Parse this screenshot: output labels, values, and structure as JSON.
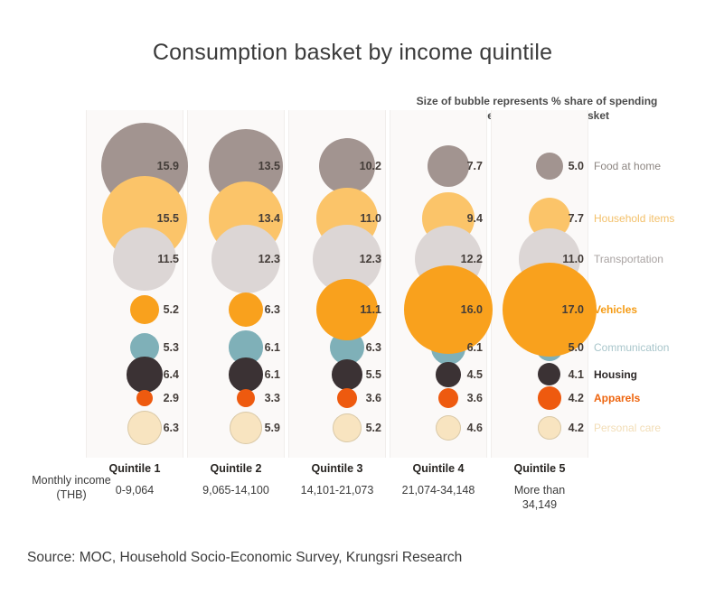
{
  "title": "Consumption basket by income quintile",
  "annotation": {
    "line1": "Size of bubble represents % share of spending",
    "line2": "in their consumption basket"
  },
  "income_axis": {
    "line1": "Monthly income",
    "line2": "(THB)"
  },
  "source": "Source: MOC, Household Socio-Economic Survey, Krungsri Research",
  "chart_data": {
    "type": "bubble",
    "value_unit": "% share of spending in consumption basket",
    "legend_position": "right",
    "categories": [
      {
        "name": "Food at home",
        "color": "#a29490",
        "legend_color": "#8d8682",
        "legend_bold": false
      },
      {
        "name": "Household items",
        "color": "#fbc469",
        "legend_color": "#f3c06a",
        "legend_bold": false
      },
      {
        "name": "Transportation",
        "color": "#dcd6d5",
        "legend_color": "#a9a3a2",
        "legend_bold": false
      },
      {
        "name": "Vehicles",
        "color": "#f9a11d",
        "legend_color": "#f59c16",
        "legend_bold": true
      },
      {
        "name": "Communication",
        "color": "#7fb0b8",
        "legend_color": "#a9c6cb",
        "legend_bold": false
      },
      {
        "name": "Housing",
        "color": "#3b3234",
        "legend_color": "#2d2828",
        "legend_bold": true
      },
      {
        "name": "Apparels",
        "color": "#ee5a0f",
        "legend_color": "#ee650f",
        "legend_bold": true
      },
      {
        "name": "Personal care",
        "color": "#f8e4c0",
        "legend_color": "#f2ddb6",
        "legend_bold": false,
        "border_color": "#d9c9a9"
      }
    ],
    "quintiles": [
      {
        "label": "Quintile 1",
        "income_lines": [
          "0-9,064"
        ],
        "values": [
          15.9,
          15.5,
          11.5,
          5.2,
          5.3,
          6.4,
          2.9,
          6.3
        ]
      },
      {
        "label": "Quintile 2",
        "income_lines": [
          "9,065-14,100"
        ],
        "values": [
          13.5,
          13.4,
          12.3,
          6.3,
          6.1,
          6.1,
          3.3,
          5.9
        ]
      },
      {
        "label": "Quintile 3",
        "income_lines": [
          "14,101-21,073"
        ],
        "values": [
          10.2,
          11.0,
          12.3,
          11.1,
          6.3,
          5.5,
          3.6,
          5.2
        ]
      },
      {
        "label": "Quintile 4",
        "income_lines": [
          "21,074-34,148"
        ],
        "values": [
          7.7,
          9.4,
          12.2,
          16.0,
          6.1,
          4.5,
          3.6,
          4.6
        ]
      },
      {
        "label": "Quintile 5",
        "income_lines": [
          "More than",
          "34,149"
        ],
        "values": [
          5.0,
          7.7,
          11.0,
          17.0,
          5.0,
          4.1,
          4.2,
          4.2
        ]
      }
    ]
  }
}
